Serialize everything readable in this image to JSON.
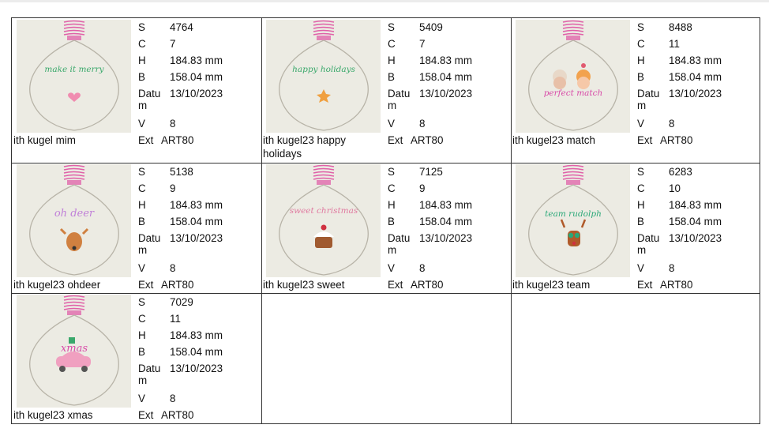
{
  "labels": {
    "s": "S",
    "c": "C",
    "h": "H",
    "b": "B",
    "datum": "Datu",
    "datum_wrap": "m",
    "v": "V",
    "ext": "Ext"
  },
  "items": [
    {
      "name": "ith kugel mim",
      "s": "4764",
      "c": "7",
      "h": "184.83 mm",
      "b": "158.04 mm",
      "date": "13/10/2023",
      "v": "8",
      "ext": "ART80",
      "motif": "make it merry",
      "motif_color": "#3aa86b",
      "accent": "#f08cb0"
    },
    {
      "name": "ith kugel23 happy holidays",
      "s": "5409",
      "c": "7",
      "h": "184.83 mm",
      "b": "158.04 mm",
      "date": "13/10/2023",
      "v": "8",
      "ext": "ART80",
      "motif": "happy holidays",
      "motif_color": "#3aa86b",
      "accent": "#f0a040"
    },
    {
      "name": "ith kugel23 match",
      "s": "8488",
      "c": "11",
      "h": "184.83 mm",
      "b": "158.04 mm",
      "date": "13/10/2023",
      "v": "8",
      "ext": "ART80",
      "motif": "perfect match",
      "motif_color": "#d84aa8",
      "accent": "#f29a5c"
    },
    {
      "name": "ith kugel23 ohdeer",
      "s": "5138",
      "c": "9",
      "h": "184.83 mm",
      "b": "158.04 mm",
      "date": "13/10/2023",
      "v": "8",
      "ext": "ART80",
      "motif": "oh deer",
      "motif_color": "#c080d8",
      "accent": "#d08040"
    },
    {
      "name": "ith kugel23 sweet",
      "s": "7125",
      "c": "9",
      "h": "184.83 mm",
      "b": "158.04 mm",
      "date": "13/10/2023",
      "v": "8",
      "ext": "ART80",
      "motif": "sweet christmas",
      "motif_color": "#e07aa0",
      "accent": "#a05a30"
    },
    {
      "name": "ith kugel23 team",
      "s": "6283",
      "c": "10",
      "h": "184.83 mm",
      "b": "158.04 mm",
      "date": "13/10/2023",
      "v": "8",
      "ext": "ART80",
      "motif": "team rudolph",
      "motif_color": "#2aa878",
      "accent": "#b05a2a"
    },
    {
      "name": "ith kugel23 xmas",
      "s": "7029",
      "c": "11",
      "h": "184.83 mm",
      "b": "158.04 mm",
      "date": "13/10/2023",
      "v": "8",
      "ext": "ART80",
      "motif": "xmas",
      "motif_color": "#d84aa8",
      "accent": "#f0a0c0"
    }
  ],
  "colors": {
    "thread": "#e060a8",
    "ornament_outline": "#b8b4a8",
    "thumb_bg": "#ecebe3",
    "border": "#333333"
  }
}
